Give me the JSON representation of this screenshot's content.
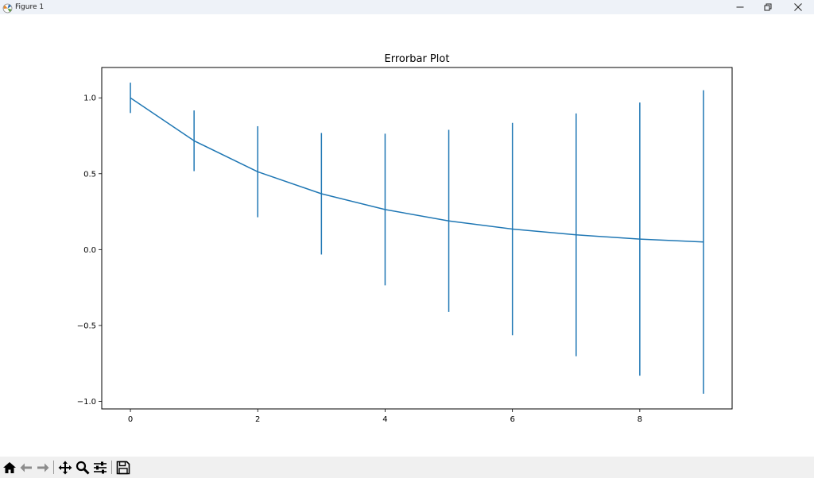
{
  "window": {
    "title": "Figure 1",
    "icons": {
      "app": "matplotlib-icon",
      "minimize": "minimize-icon",
      "maximize": "restore-icon",
      "close": "close-icon"
    }
  },
  "toolbar": {
    "coords": "",
    "tools": [
      {
        "name": "home",
        "icon": "home-icon"
      },
      {
        "name": "back",
        "icon": "arrow-left-icon"
      },
      {
        "name": "forward",
        "icon": "arrow-right-icon"
      },
      {
        "name": "pan",
        "icon": "move-icon"
      },
      {
        "name": "zoom",
        "icon": "magnifier-icon"
      },
      {
        "name": "subplots",
        "icon": "sliders-icon"
      },
      {
        "name": "save",
        "icon": "floppy-disk-icon"
      }
    ]
  },
  "chart_data": {
    "type": "line",
    "title": "Errorbar Plot",
    "xlabel": "",
    "ylabel": "",
    "xlim": [
      -0.45,
      9.45
    ],
    "ylim": [
      -1.05,
      1.2
    ],
    "xticks": [
      0,
      2,
      4,
      6,
      8
    ],
    "xtick_labels": [
      "0",
      "2",
      "4",
      "6",
      "8"
    ],
    "yticks": [
      -1.0,
      -0.5,
      0.0,
      0.5,
      1.0
    ],
    "ytick_labels": [
      "−1.0",
      "−0.5",
      "0.0",
      "0.5",
      "1.0"
    ],
    "grid": false,
    "legend": "none",
    "color": "#1f77b4",
    "series": [
      {
        "x": [
          0,
          1,
          2,
          3,
          4,
          5,
          6,
          7,
          8,
          9
        ],
        "y": [
          1.0,
          0.717,
          0.513,
          0.368,
          0.264,
          0.189,
          0.135,
          0.097,
          0.069,
          0.05
        ],
        "yerr": [
          0.1,
          0.2,
          0.3,
          0.4,
          0.5,
          0.6,
          0.7,
          0.8,
          0.9,
          1.0
        ]
      }
    ]
  }
}
